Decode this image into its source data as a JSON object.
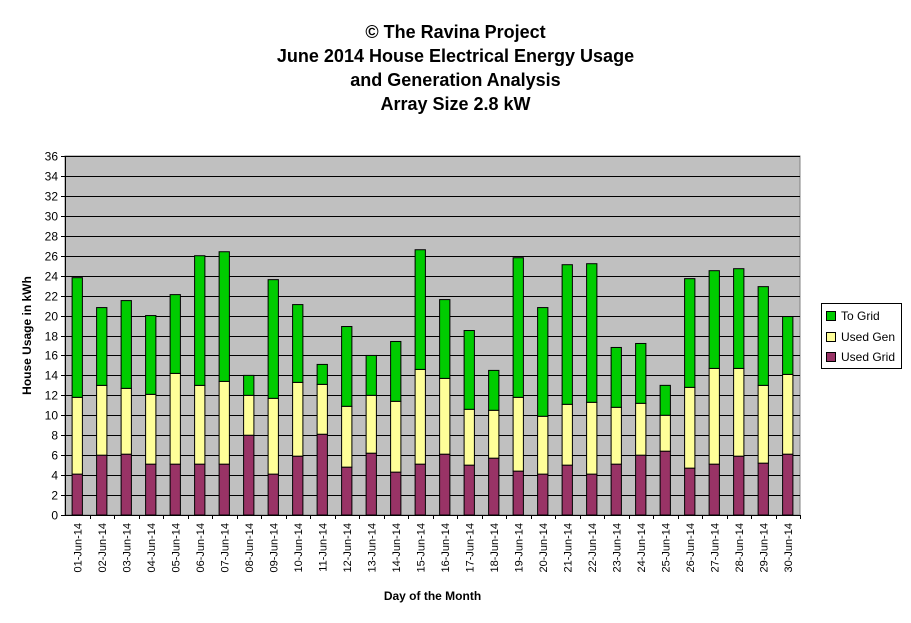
{
  "titles": [
    "© The Ravina Project",
    "June 2014 House Electrical Energy Usage",
    "and Generation Analysis",
    "Array Size 2.8 kW"
  ],
  "colors": {
    "plot_bg": "#c0c0c0",
    "to_grid": "#00cc00",
    "used_gen": "#ffff99",
    "used_grid": "#993366",
    "gridline": "#000000"
  },
  "chart_data": {
    "type": "bar",
    "stacked": true,
    "title": "© The Ravina Project / June 2014 House Electrical Energy Usage / and Generation Analysis / Array Size 2.8 kW",
    "xlabel": "Day of the Month",
    "ylabel": "House Usage in kWh",
    "ylim": [
      0,
      36
    ],
    "ytick_step": 2,
    "grid": true,
    "legend_position": "right",
    "categories": [
      "01-Jun-14",
      "02-Jun-14",
      "03-Jun-14",
      "04-Jun-14",
      "05-Jun-14",
      "06-Jun-14",
      "07-Jun-14",
      "08-Jun-14",
      "09-Jun-14",
      "10-Jun-14",
      "11-Jun-14",
      "12-Jun-14",
      "13-Jun-14",
      "14-Jun-14",
      "15-Jun-14",
      "16-Jun-14",
      "17-Jun-14",
      "18-Jun-14",
      "19-Jun-14",
      "20-Jun-14",
      "21-Jun-14",
      "22-Jun-14",
      "23-Jun-14",
      "24-Jun-14",
      "25-Jun-14",
      "26-Jun-14",
      "27-Jun-14",
      "28-Jun-14",
      "29-Jun-14",
      "30-Jun-14"
    ],
    "series": [
      {
        "name": "Used Grid",
        "color": "#993366",
        "values": [
          4.1,
          6.0,
          6.1,
          5.1,
          5.1,
          5.1,
          5.1,
          8.0,
          4.1,
          5.9,
          8.1,
          4.8,
          6.2,
          4.3,
          5.1,
          6.1,
          5.0,
          5.7,
          4.4,
          4.1,
          5.0,
          4.1,
          5.1,
          6.0,
          6.4,
          4.7,
          5.1,
          5.9,
          5.2,
          6.1
        ]
      },
      {
        "name": "Used Gen",
        "color": "#ffff99",
        "values": [
          7.7,
          7.0,
          6.6,
          7.0,
          9.1,
          7.9,
          8.3,
          4.0,
          7.6,
          7.4,
          5.0,
          6.1,
          5.8,
          7.1,
          9.5,
          7.6,
          5.6,
          4.8,
          7.4,
          5.8,
          6.1,
          7.2,
          5.7,
          5.2,
          3.6,
          8.1,
          9.6,
          8.8,
          7.8,
          8.0
        ]
      },
      {
        "name": "To Grid",
        "color": "#00cc00",
        "values": [
          12.0,
          7.8,
          8.8,
          7.9,
          7.9,
          13.0,
          13.0,
          2.0,
          11.9,
          7.8,
          2.0,
          8.0,
          4.0,
          6.0,
          12.0,
          7.9,
          7.9,
          4.0,
          14.0,
          10.9,
          14.0,
          13.9,
          6.0,
          6.0,
          3.0,
          10.9,
          9.8,
          10.0,
          9.9,
          5.8
        ]
      }
    ]
  },
  "legend": [
    {
      "label": "To Grid",
      "color": "#00cc00"
    },
    {
      "label": "Used Gen",
      "color": "#ffff99"
    },
    {
      "label": "Used Grid",
      "color": "#993366"
    }
  ]
}
